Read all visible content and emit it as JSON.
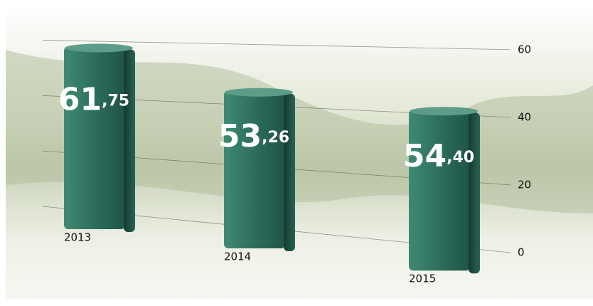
{
  "chart_data": {
    "type": "bar",
    "categories": [
      "2013",
      "2014",
      "2015"
    ],
    "values": [
      61.75,
      53.26,
      54.4
    ],
    "value_labels": [
      "61,75",
      "53,26",
      "54,40"
    ],
    "color": "#2f6b5a",
    "ylim": [
      0,
      65
    ],
    "yticks": [
      0,
      20,
      40,
      60
    ],
    "grid": true
  }
}
